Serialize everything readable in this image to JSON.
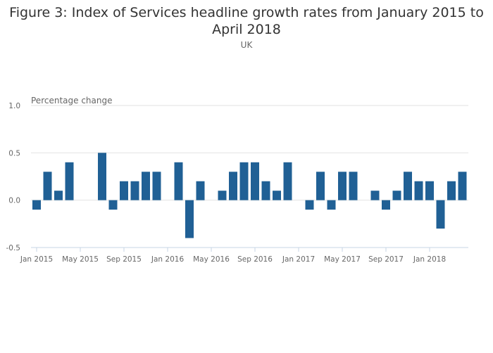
{
  "chart_data": {
    "type": "bar",
    "title": "Figure 3: Index of Services headline growth rates from January 2015 to April 2018",
    "subtitle": "UK",
    "ylabel": "Percentage change",
    "xlabel": "",
    "ylim": [
      -0.5,
      1.0
    ],
    "yticks": [
      "1.0",
      "0.5",
      "0.0",
      "-0.5"
    ],
    "ytick_values": [
      1.0,
      0.5,
      0.0,
      -0.5
    ],
    "xtick_labels": [
      "Jan 2015",
      "May 2015",
      "Sep 2015",
      "Jan 2016",
      "May 2016",
      "Sep 2016",
      "Jan 2017",
      "May 2017",
      "Sep 2017",
      "Jan 2018"
    ],
    "xtick_indices": [
      0,
      4,
      8,
      12,
      16,
      20,
      24,
      28,
      32,
      36
    ],
    "grid": true,
    "color": "#206095",
    "categories": [
      "Jan 2015",
      "Feb 2015",
      "Mar 2015",
      "Apr 2015",
      "May 2015",
      "Jun 2015",
      "Jul 2015",
      "Aug 2015",
      "Sep 2015",
      "Oct 2015",
      "Nov 2015",
      "Dec 2015",
      "Jan 2016",
      "Feb 2016",
      "Mar 2016",
      "Apr 2016",
      "May 2016",
      "Jun 2016",
      "Jul 2016",
      "Aug 2016",
      "Sep 2016",
      "Oct 2016",
      "Nov 2016",
      "Dec 2016",
      "Jan 2017",
      "Feb 2017",
      "Mar 2017",
      "Apr 2017",
      "May 2017",
      "Jun 2017",
      "Jul 2017",
      "Aug 2017",
      "Sep 2017",
      "Oct 2017",
      "Nov 2017",
      "Dec 2017",
      "Jan 2018",
      "Feb 2018",
      "Mar 2018",
      "Apr 2018"
    ],
    "values": [
      -0.1,
      0.3,
      0.1,
      0.4,
      0,
      0,
      0.5,
      -0.1,
      0.2,
      0.2,
      0.3,
      0.3,
      0,
      0.4,
      -0.4,
      0.2,
      0,
      0.1,
      0.3,
      0.4,
      0.4,
      0.2,
      0.1,
      0.4,
      0,
      -0.1,
      0.3,
      -0.1,
      0.3,
      0.3,
      0,
      0.1,
      -0.1,
      0.1,
      0.3,
      0.2,
      0.2,
      -0.3,
      0.2,
      0.3
    ]
  }
}
